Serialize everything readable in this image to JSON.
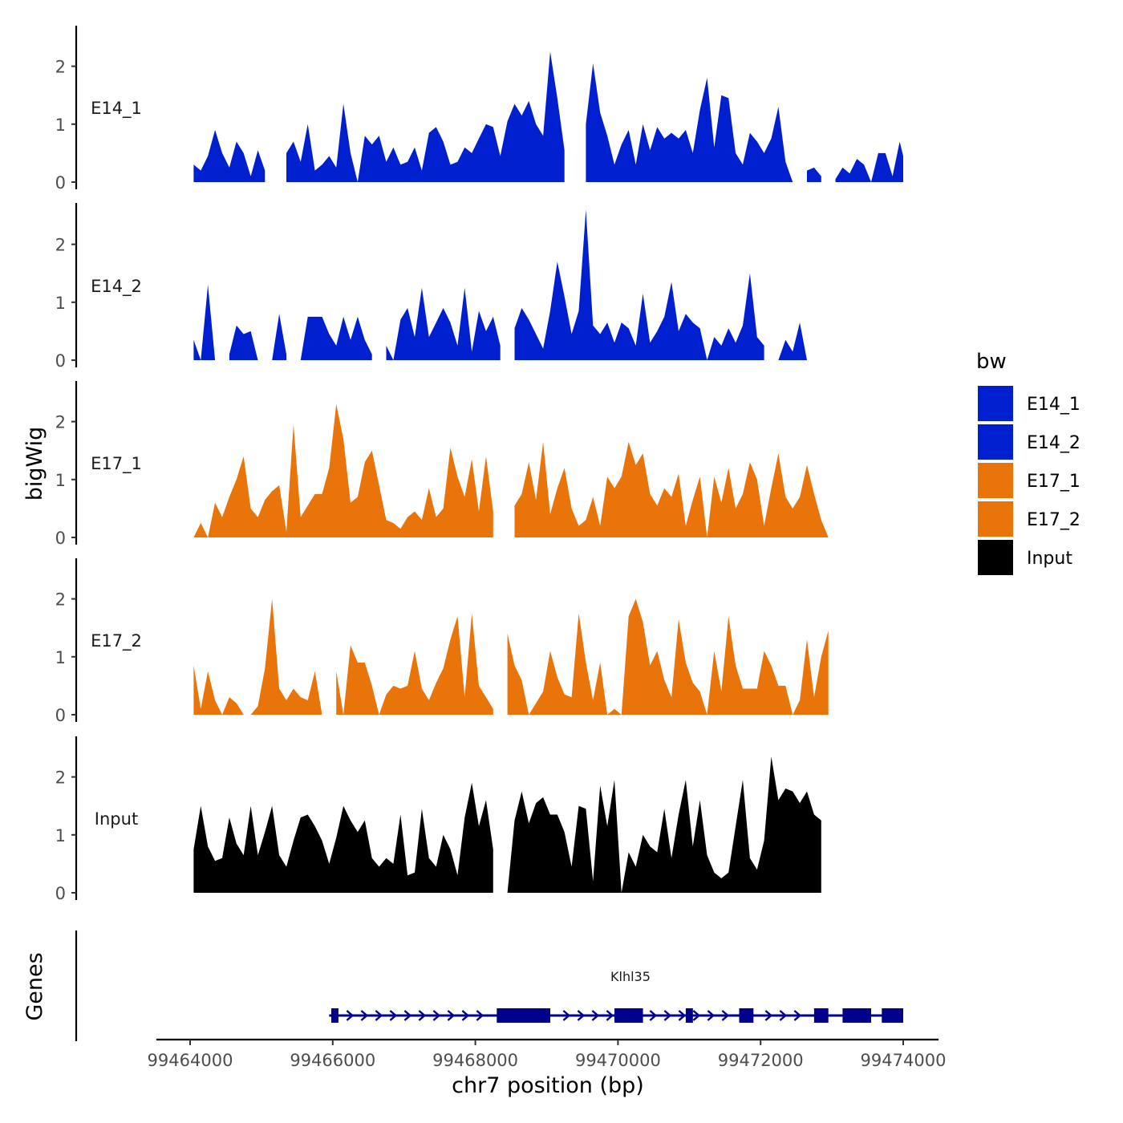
{
  "chart_data": {
    "type": "area",
    "ylabel": "bigWig",
    "xlabel": "chr7 position (bp)",
    "xlim": [
      99463800,
      99474500
    ],
    "ylim": [
      0,
      2.6
    ],
    "y_ticks": [
      0,
      1,
      2
    ],
    "y_tick_labels": [
      "0",
      "1",
      "2"
    ],
    "x_ticks": [
      99464000,
      99466000,
      99468000,
      99470000,
      99472000,
      99474000
    ],
    "x_tick_labels": [
      "99464000",
      "99466000",
      "99468000",
      "99470000",
      "99472000",
      "99474000"
    ],
    "legend": {
      "title": "bw",
      "position": "right",
      "entries": [
        {
          "label": "E14_1",
          "color": "#0020CF"
        },
        {
          "label": "E14_2",
          "color": "#0020CF"
        },
        {
          "label": "E17_1",
          "color": "#E8740A"
        },
        {
          "label": "E17_2",
          "color": "#E8740A"
        },
        {
          "label": "Input",
          "color": "#000000"
        }
      ]
    },
    "tracks": [
      {
        "name": "E14_1",
        "color": "#0020CF",
        "x_start": 99464050,
        "x_end": 99474000,
        "step": 100,
        "values": [
          0.3,
          0.2,
          0.45,
          0.9,
          0.5,
          0.25,
          0.7,
          0.5,
          0.1,
          0.55,
          0.2,
          null,
          null,
          0.5,
          0.7,
          0.35,
          1.0,
          0.2,
          0.3,
          0.45,
          0.25,
          1.35,
          0.5,
          0.0,
          0.8,
          0.65,
          0.8,
          0.35,
          0.6,
          0.3,
          0.35,
          0.6,
          0.2,
          0.85,
          0.95,
          0.7,
          0.3,
          0.35,
          0.6,
          0.5,
          0.75,
          1.0,
          0.95,
          0.45,
          1.05,
          1.35,
          1.15,
          1.4,
          1.0,
          0.8,
          2.25,
          1.45,
          0.55,
          null,
          null,
          1.0,
          2.05,
          1.2,
          0.8,
          0.3,
          0.65,
          0.9,
          0.3,
          1.0,
          0.55,
          0.95,
          0.75,
          0.85,
          0.75,
          0.9,
          0.5,
          1.25,
          1.8,
          0.6,
          1.5,
          1.45,
          0.5,
          0.3,
          0.85,
          0.7,
          0.5,
          0.75,
          1.3,
          0.35,
          0.0,
          null,
          0.2,
          0.25,
          0.1,
          null,
          0.05,
          0.25,
          0.15,
          0.4,
          0.3,
          0.0,
          0.5,
          0.5,
          0.1,
          0.7,
          0.45,
          0.25,
          0.65,
          0.35,
          0.6
        ]
      },
      {
        "name": "E14_2",
        "color": "#0020CF",
        "x_start": 99464050,
        "x_end": 99474000,
        "step": 100,
        "values": [
          0.35,
          0.0,
          1.3,
          0.0,
          null,
          0.1,
          0.6,
          0.45,
          0.5,
          0.0,
          null,
          0.0,
          0.8,
          0.1,
          null,
          0.0,
          0.75,
          0.75,
          0.75,
          0.45,
          0.25,
          0.75,
          0.35,
          0.75,
          0.35,
          0.1,
          null,
          0.25,
          0.0,
          0.7,
          0.9,
          0.4,
          1.25,
          0.4,
          0.65,
          0.9,
          0.65,
          0.25,
          1.25,
          0.15,
          0.85,
          0.5,
          0.75,
          0.25,
          null,
          0.55,
          0.9,
          0.7,
          0.45,
          0.2,
          0.85,
          1.7,
          1.1,
          0.45,
          0.85,
          2.6,
          0.6,
          0.45,
          0.65,
          0.3,
          0.65,
          0.55,
          0.25,
          1.15,
          0.3,
          0.5,
          0.75,
          1.35,
          0.5,
          0.8,
          0.65,
          0.55,
          0.0,
          0.4,
          0.25,
          0.55,
          0.3,
          0.6,
          1.5,
          0.4,
          0.25,
          null,
          0.0,
          0.35,
          0.15,
          0.65,
          0.0
        ]
      },
      {
        "name": "E17_1",
        "color": "#E8740A",
        "x_start": 99464050,
        "x_end": 99473900,
        "step": 100,
        "values": [
          0.0,
          0.25,
          0.0,
          0.6,
          0.35,
          0.7,
          1.0,
          1.4,
          0.5,
          0.35,
          0.65,
          0.8,
          0.9,
          0.1,
          1.95,
          0.35,
          0.55,
          0.75,
          0.75,
          1.2,
          2.3,
          1.7,
          0.6,
          0.7,
          1.3,
          1.5,
          0.9,
          0.3,
          0.25,
          0.15,
          0.35,
          0.45,
          0.3,
          0.85,
          0.35,
          0.5,
          1.55,
          1.05,
          0.7,
          1.35,
          0.45,
          1.4,
          0.45,
          null,
          null,
          0.55,
          0.75,
          1.3,
          0.65,
          1.65,
          0.4,
          0.85,
          1.2,
          0.5,
          0.2,
          0.3,
          0.7,
          0.2,
          1.05,
          0.85,
          1.05,
          1.65,
          1.25,
          1.45,
          0.75,
          0.55,
          0.85,
          0.7,
          1.1,
          0.2,
          0.65,
          1.05,
          0.0,
          1.05,
          0.6,
          1.2,
          0.5,
          0.75,
          1.3,
          1.0,
          0.2,
          0.85,
          1.45,
          0.7,
          0.5,
          0.7,
          1.25,
          0.75,
          0.3,
          0.0
        ]
      },
      {
        "name": "E17_2",
        "color": "#E8740A",
        "x_start": 99464050,
        "x_end": 99474000,
        "step": 100,
        "values": [
          0.85,
          0.1,
          0.75,
          0.25,
          0.0,
          0.3,
          0.2,
          0.0,
          0.0,
          0.15,
          0.8,
          2.0,
          0.45,
          0.25,
          0.45,
          0.3,
          0.25,
          0.75,
          0.0,
          null,
          0.75,
          0.0,
          1.2,
          0.9,
          0.9,
          0.5,
          0.0,
          0.35,
          0.5,
          0.45,
          0.5,
          1.1,
          0.45,
          0.25,
          0.55,
          0.8,
          1.3,
          1.7,
          0.3,
          1.75,
          0.5,
          0.3,
          0.1,
          null,
          1.4,
          0.85,
          0.6,
          0.0,
          0.2,
          0.4,
          1.1,
          0.65,
          0.35,
          0.3,
          1.75,
          0.9,
          0.25,
          0.9,
          0.0,
          0.1,
          0.0,
          1.7,
          2.0,
          1.6,
          0.85,
          1.1,
          0.6,
          0.3,
          1.65,
          0.9,
          0.55,
          0.4,
          0.0,
          1.1,
          0.4,
          1.7,
          0.85,
          0.45,
          0.45,
          0.45,
          1.1,
          0.85,
          0.5,
          0.5,
          0.0,
          0.25,
          1.3,
          0.3,
          1.0,
          1.45
        ]
      },
      {
        "name": "Input",
        "color": "#000000",
        "x_start": 99464050,
        "x_end": 99474000,
        "step": 100,
        "values": [
          0.75,
          1.5,
          0.8,
          0.55,
          0.6,
          1.3,
          0.85,
          0.65,
          1.5,
          0.65,
          1.05,
          1.5,
          0.65,
          0.45,
          0.9,
          1.3,
          1.35,
          1.15,
          0.9,
          0.5,
          0.95,
          1.5,
          1.25,
          1.05,
          1.25,
          0.6,
          0.45,
          0.6,
          0.5,
          1.35,
          0.3,
          0.35,
          1.45,
          0.6,
          0.45,
          1.0,
          0.75,
          0.3,
          1.3,
          1.9,
          1.15,
          1.6,
          0.75,
          null,
          0.0,
          1.25,
          1.75,
          1.2,
          1.55,
          1.65,
          1.35,
          1.35,
          1.05,
          0.45,
          1.5,
          1.45,
          0.2,
          1.85,
          1.15,
          1.95,
          0.0,
          0.7,
          0.45,
          1.0,
          0.8,
          0.7,
          1.45,
          0.6,
          1.35,
          1.95,
          0.8,
          1.6,
          0.65,
          0.35,
          0.25,
          0.35,
          1.15,
          1.95,
          0.6,
          0.4,
          0.9,
          2.35,
          1.6,
          1.8,
          1.75,
          1.55,
          1.75,
          1.35,
          1.25
        ]
      }
    ],
    "gene_track": {
      "label": "Genes",
      "gene_name": "Klhl35",
      "color": "#00008B",
      "start": 99465950,
      "end": 99474000,
      "strand": "+",
      "exons": [
        [
          99465980,
          99466080
        ],
        [
          99468300,
          99469050
        ],
        [
          99469950,
          99470350
        ],
        [
          99470950,
          99471050
        ],
        [
          99471700,
          99471900
        ],
        [
          99472750,
          99472950
        ],
        [
          99473150,
          99473550
        ],
        [
          99473700,
          99474000
        ]
      ]
    }
  }
}
